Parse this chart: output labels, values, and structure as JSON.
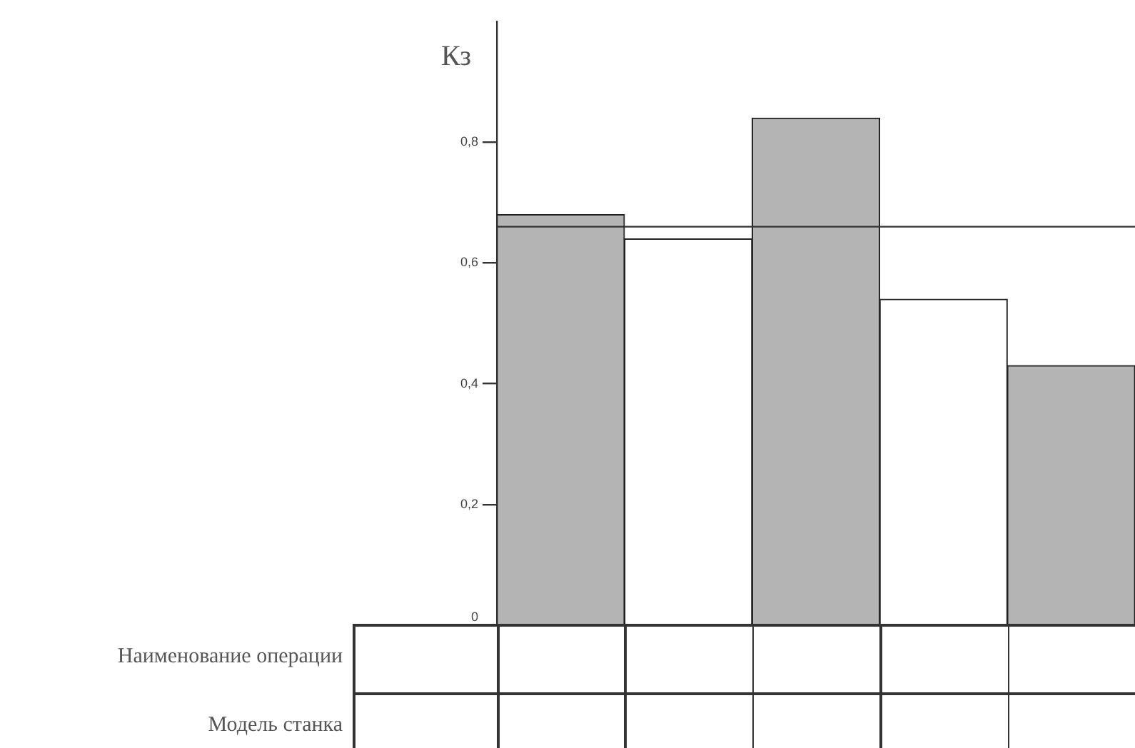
{
  "chart_data": {
    "type": "bar",
    "ylabel": "Кз",
    "categories": [
      null,
      null,
      null,
      null,
      null
    ],
    "values": [
      0.68,
      0.64,
      0.84,
      0.54,
      0.43
    ],
    "colors": [
      "#b4b4b4",
      "#ffffff",
      "#b4b4b4",
      "#ffffff",
      "#b4b4b4"
    ],
    "ylim": [
      0,
      1
    ],
    "yticks": [
      0,
      {
        "value": 0.2,
        "label": "0,2"
      },
      {
        "value": 0.4,
        "label": "0,4"
      },
      {
        "value": 0.6,
        "label": "0,6"
      },
      {
        "value": 0.8,
        "label": "0,8"
      }
    ],
    "ref_lines": [
      {
        "axis": "y",
        "value": 0.66,
        "color": "#333333"
      }
    ],
    "annotations": [
      "Наименование операции",
      "Модель станка"
    ],
    "grid": false,
    "legend": false
  }
}
